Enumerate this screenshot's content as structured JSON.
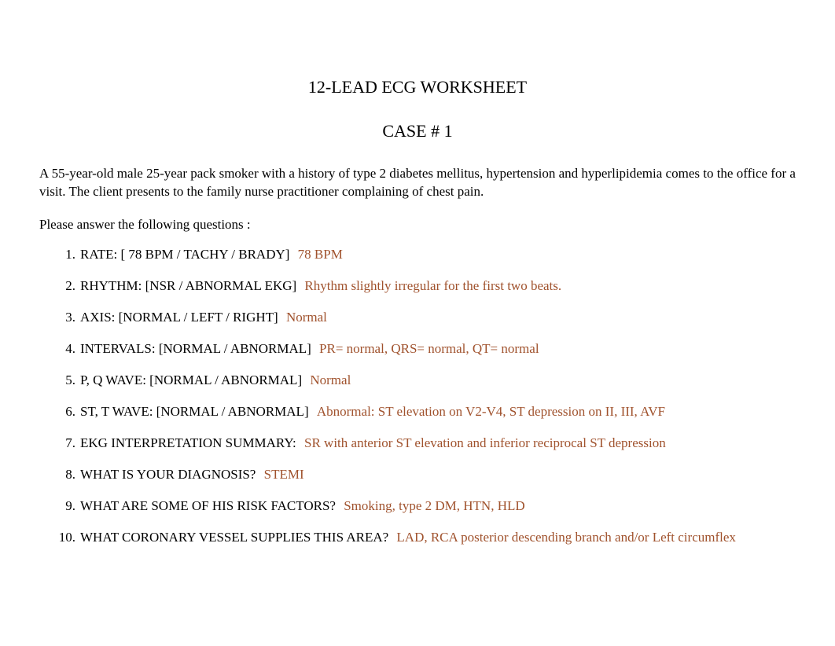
{
  "title": "12-LEAD ECG WORKSHEET",
  "case_number": "CASE # 1",
  "intro": "A 55-year-old male 25-year pack smoker with a history of type 2 diabetes mellitus, hypertension and hyperlipidemia comes to the office for a visit. The client presents to the family nurse practitioner complaining of chest pain.",
  "prompt": "Please answer the following questions :",
  "answer_color": "#a0522d",
  "text_color": "#000000",
  "background_color": "#ffffff",
  "font_family": "Times New Roman",
  "title_fontsize": 22,
  "body_fontsize": 17,
  "questions": [
    {
      "num": "1.",
      "label": "RATE: [ 78 BPM / TACHY / BRADY]",
      "answer": "78 BPM"
    },
    {
      "num": "2.",
      "label": "RHYTHM: [NSR / ABNORMAL EKG]",
      "answer": "Rhythm slightly irregular for the first two beats."
    },
    {
      "num": "3.",
      "label": "AXIS: [NORMAL / LEFT / RIGHT]",
      "answer": "Normal"
    },
    {
      "num": "4.",
      "label": "INTERVALS: [NORMAL / ABNORMAL] ",
      "answer": "PR= normal, QRS= normal, QT= normal"
    },
    {
      "num": "5.",
      "label": "P, Q WAVE: [NORMAL / ABNORMAL]  ",
      "answer": "Normal"
    },
    {
      "num": "6.",
      "label": "ST, T WAVE: [NORMAL / ABNORMAL]  ",
      "answer": "Abnormal: ST elevation on V2-V4, ST depression on II, III, AVF"
    },
    {
      "num": "7.",
      "label": "EKG INTERPRETATION SUMMARY:  ",
      "answer": "SR with anterior ST elevation and inferior reciprocal ST depression"
    },
    {
      "num": "8.",
      "label": "WHAT IS YOUR DIAGNOSIS?",
      "answer": "STEMI"
    },
    {
      "num": "9.",
      "label": "WHAT ARE SOME OF HIS RISK FACTORS?",
      "answer": "Smoking, type 2 DM, HTN, HLD"
    },
    {
      "num": "10.",
      "label": "WHAT CORONARY VESSEL SUPPLIES THIS AREA?  ",
      "answer": "LAD, RCA posterior descending branch and/or Left circumflex"
    }
  ]
}
